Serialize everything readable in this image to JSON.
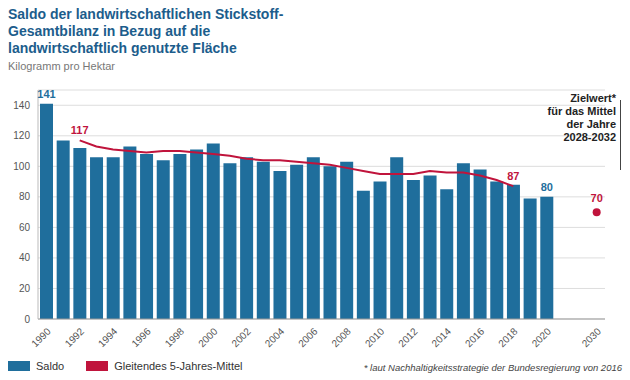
{
  "chart_data": {
    "type": "bar",
    "title": "Saldo der landwirtschaftlichen Stickstoff-Gesamtbilanz in Bezug auf die landwirtschaftlich genutzte Fläche",
    "y_label": "Kilogramm pro Hektar",
    "categories": [
      "1990",
      null,
      "1992",
      null,
      "1994",
      null,
      "1996",
      null,
      "1998",
      null,
      "2000",
      null,
      "2002",
      null,
      "2004",
      null,
      "2006",
      null,
      "2008",
      null,
      "2010",
      null,
      "2012",
      null,
      "2014",
      null,
      "2016",
      null,
      "2018",
      null,
      "2020",
      null,
      null,
      "2030"
    ],
    "series": [
      {
        "name": "Saldo",
        "type": "bar",
        "color": "#1f6e9c",
        "values": [
          141,
          117,
          112,
          106,
          106,
          113,
          108,
          104,
          108,
          111,
          115,
          102,
          106,
          103,
          97,
          101,
          106,
          100,
          103,
          84,
          90,
          106,
          91,
          94,
          85,
          102,
          98,
          90,
          88,
          79,
          80,
          null,
          null,
          null
        ],
        "value_labels": [
          "141",
          null,
          null,
          null,
          null,
          null,
          null,
          null,
          null,
          null,
          null,
          null,
          null,
          null,
          null,
          null,
          null,
          null,
          null,
          null,
          null,
          null,
          null,
          null,
          null,
          null,
          null,
          null,
          null,
          null,
          "80",
          null,
          null,
          null
        ]
      },
      {
        "name": "Gleitendes 5-Jahres-Mittel",
        "type": "line",
        "color": "#c0143c",
        "values": [
          null,
          null,
          117,
          113,
          111,
          110,
          109,
          110,
          110,
          109,
          108,
          107,
          105,
          104,
          104,
          103,
          102,
          101,
          99,
          97,
          95,
          95,
          95,
          97,
          96,
          96,
          94,
          91,
          87,
          null,
          null,
          null,
          null,
          null
        ],
        "value_labels": [
          null,
          null,
          "117",
          null,
          null,
          null,
          null,
          null,
          null,
          null,
          null,
          null,
          null,
          null,
          null,
          null,
          null,
          null,
          null,
          null,
          null,
          null,
          null,
          null,
          null,
          null,
          null,
          null,
          "87",
          null,
          null,
          null,
          null,
          null
        ]
      }
    ],
    "target": {
      "category": "2030",
      "value": 70,
      "color": "#c0143c",
      "label": [
        "Zielwert*",
        "für das Mittel",
        "der Jahre",
        "2028-2032"
      ]
    },
    "footnote": "* laut Nachhaltigkeitsstrategie der Bundesregierung von 2016",
    "ylim": [
      0,
      150
    ],
    "yticks": [
      0,
      20,
      40,
      60,
      80,
      100,
      120,
      140
    ],
    "grid": true
  }
}
